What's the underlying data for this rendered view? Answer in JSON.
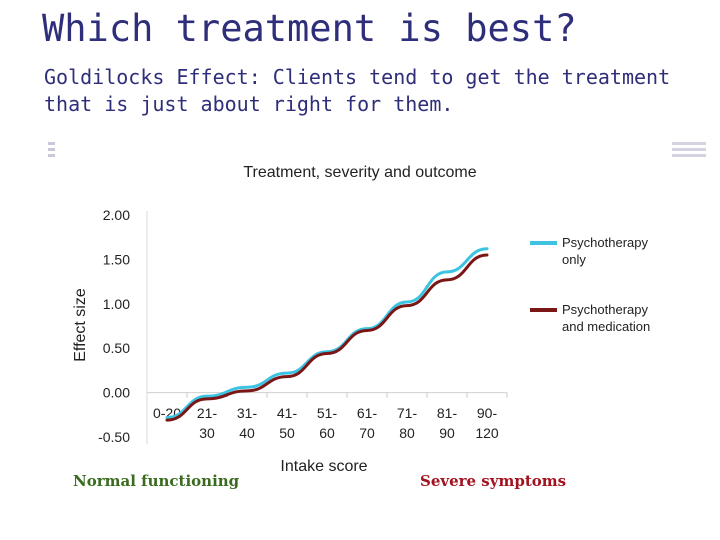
{
  "slide": {
    "title": "Which treatment is best?",
    "subtitle": "Goldilocks Effect: Clients tend to get the treatment that is just about right for them."
  },
  "notes": {
    "left": "Normal functioning",
    "right": "Severe symptoms"
  },
  "colors": {
    "title_text": "#2e2e7a",
    "note_left": "#3a6b1e",
    "note_right": "#a3121f",
    "psychotherapy_only": "#3cc3e2",
    "psychotherapy_and_medication": "#7a1616"
  },
  "chart_data": {
    "type": "line",
    "title": "Treatment, severity and outcome",
    "xlabel": "Intake score",
    "ylabel": "Effect size",
    "categories": [
      [
        "0-20"
      ],
      [
        "21-",
        "30"
      ],
      [
        "31-",
        "40"
      ],
      [
        "41-",
        "50"
      ],
      [
        "51-",
        "60"
      ],
      [
        "61-",
        "70"
      ],
      [
        "71-",
        "80"
      ],
      [
        "81-",
        "90"
      ],
      [
        "90-",
        "120"
      ]
    ],
    "ylim": [
      -0.5,
      2.0
    ],
    "yticks": [
      "2.00",
      "1.50",
      "1.00",
      "0.50",
      "0.00",
      "-0.50"
    ],
    "ytick_values": [
      2.0,
      1.5,
      1.0,
      0.5,
      0.0,
      -0.5
    ],
    "grid": false,
    "legend_position": "right",
    "series": [
      {
        "name": [
          "Psychotherapy",
          "only"
        ],
        "color": "#3cc3e2",
        "values": [
          -0.28,
          -0.04,
          0.06,
          0.22,
          0.46,
          0.72,
          1.02,
          1.36,
          1.62
        ]
      },
      {
        "name": [
          "Psychotherapy",
          "and medication"
        ],
        "color": "#7a1616",
        "values": [
          -0.31,
          -0.07,
          0.02,
          0.18,
          0.44,
          0.7,
          0.98,
          1.27,
          1.55
        ]
      }
    ]
  }
}
